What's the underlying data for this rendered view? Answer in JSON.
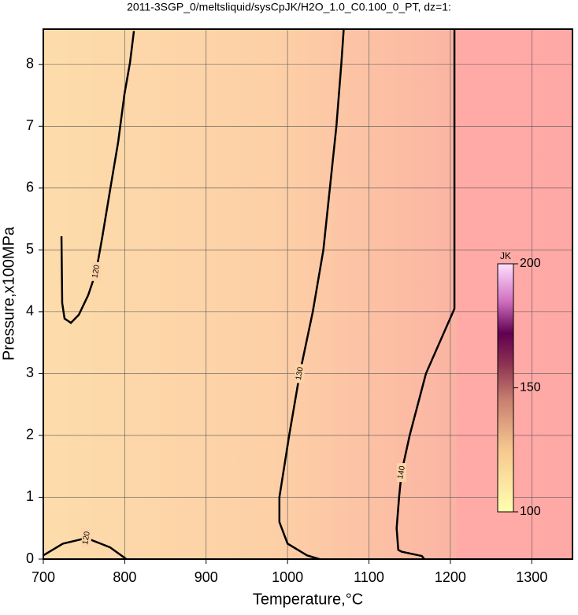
{
  "chart_data": {
    "type": "contour",
    "title": "2011-3SGP_0/meltsliquid/sysCpJK/H2O_1.0_C0.100_0_PT, dz=1:",
    "x_label": "Temperature,°C",
    "y_label": "Pressure,x100MPa",
    "xlim": [
      700,
      1350
    ],
    "ylim": [
      0,
      8.57
    ],
    "xticks": [
      700,
      800,
      900,
      1000,
      1100,
      1200,
      1300
    ],
    "yticks": [
      0,
      1,
      2,
      3,
      4,
      5,
      6,
      7,
      8
    ],
    "grid": true,
    "contours": [
      {
        "level": 120,
        "x": [
          722.3,
          723.2,
          726.1,
          733.9,
          743.6,
          755.2,
          764.9,
          772.6,
          782.3,
          792.0,
          799.7,
          806.5,
          811.3
        ],
        "y": [
          5.22,
          4.14,
          3.89,
          3.82,
          3.95,
          4.27,
          4.65,
          5.22,
          5.99,
          6.75,
          7.52,
          8.03,
          8.54
        ]
      },
      {
        "level": 120,
        "x": [
          700,
          724,
          753,
          782,
          802
        ],
        "y": [
          0.06,
          0.25,
          0.34,
          0.19,
          0
        ]
      },
      {
        "level": 130,
        "x": [
          1039,
          1024,
          1000,
          990,
          990,
          1002,
          1015,
          1031,
          1044,
          1052,
          1060,
          1066,
          1069
        ],
        "y": [
          0,
          0.06,
          0.25,
          0.6,
          1,
          2,
          3,
          4,
          5,
          6,
          7,
          8,
          8.57
        ]
      },
      {
        "level": 140,
        "x": [
          1168,
          1165,
          1140,
          1136,
          1134,
          1137,
          1140,
          1150,
          1170,
          1205,
          1205,
          1205
        ],
        "y": [
          0,
          0.05,
          0.12,
          0.15,
          0.5,
          1,
          1.4,
          2,
          3,
          4.05,
          6,
          8.57
        ]
      }
    ],
    "zlabel": "JK",
    "zlim": [
      100,
      200
    ],
    "zticks": [
      100,
      150,
      200
    ]
  }
}
